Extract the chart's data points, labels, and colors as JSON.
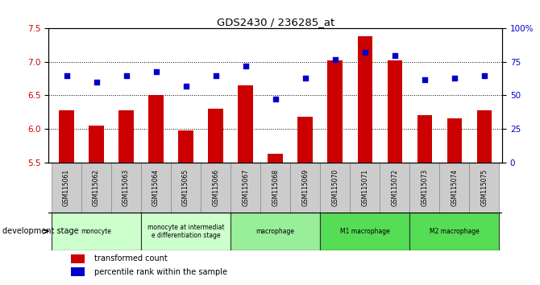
{
  "title": "GDS2430 / 236285_at",
  "samples": [
    "GSM115061",
    "GSM115062",
    "GSM115063",
    "GSM115064",
    "GSM115065",
    "GSM115066",
    "GSM115067",
    "GSM115068",
    "GSM115069",
    "GSM115070",
    "GSM115071",
    "GSM115072",
    "GSM115073",
    "GSM115074",
    "GSM115075"
  ],
  "bar_values": [
    6.28,
    6.05,
    6.28,
    6.5,
    5.98,
    6.3,
    6.65,
    5.63,
    6.18,
    7.02,
    7.38,
    7.02,
    6.2,
    6.16,
    6.28
  ],
  "dot_values": [
    65,
    60,
    65,
    68,
    57,
    65,
    72,
    47,
    63,
    77,
    82,
    80,
    62,
    63,
    65
  ],
  "bar_color": "#cc0000",
  "dot_color": "#0000cc",
  "ylim_left": [
    5.5,
    7.5
  ],
  "ylim_right": [
    0,
    100
  ],
  "yticks_left": [
    5.5,
    6.0,
    6.5,
    7.0,
    7.5
  ],
  "yticks_right": [
    0,
    25,
    50,
    75,
    100
  ],
  "ytick_labels_right": [
    "0",
    "25",
    "50",
    "75",
    "100%"
  ],
  "groups": [
    {
      "label": "monocyte",
      "start": 0,
      "end": 2,
      "color": "#ccffcc"
    },
    {
      "label": "monocyte at intermediat\ne differentiation stage",
      "start": 3,
      "end": 5,
      "color": "#ccffcc"
    },
    {
      "label": "macrophage",
      "start": 6,
      "end": 8,
      "color": "#99ee99"
    },
    {
      "label": "M1 macrophage",
      "start": 9,
      "end": 11,
      "color": "#55dd55"
    },
    {
      "label": "M2 macrophage",
      "start": 12,
      "end": 14,
      "color": "#55dd55"
    }
  ],
  "legend_bar": "transformed count",
  "legend_dot": "percentile rank within the sample",
  "bg_color": "#ffffff",
  "tick_label_color_left": "#cc0000",
  "tick_label_color_right": "#0000cc",
  "sample_box_color": "#cccccc",
  "bar_width": 0.5
}
